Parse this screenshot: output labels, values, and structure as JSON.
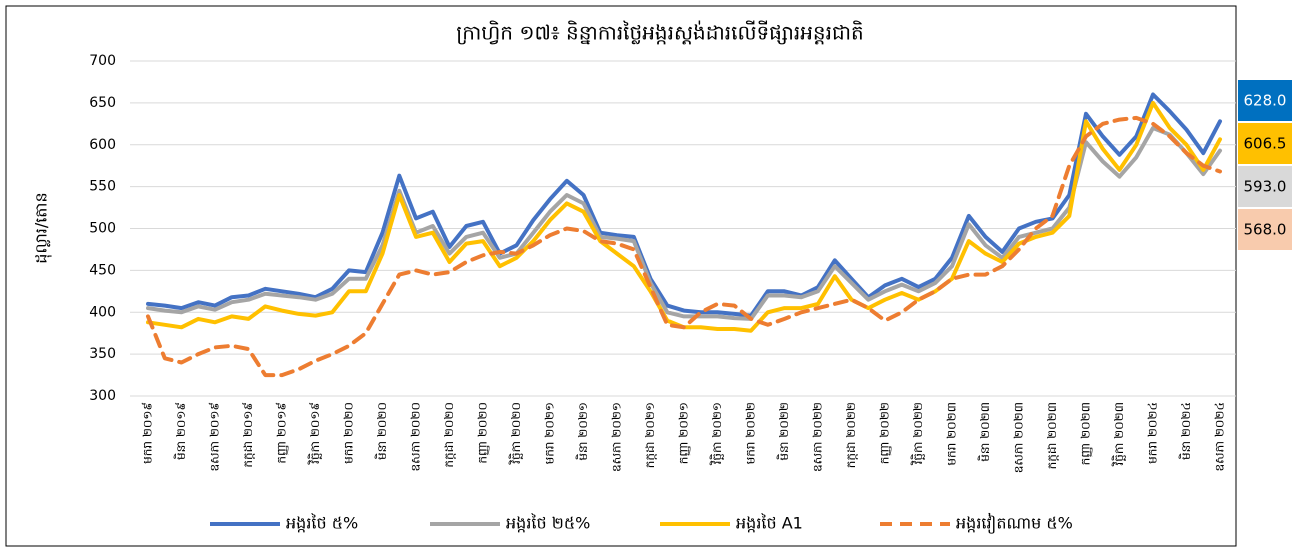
{
  "chart_data": {
    "type": "line",
    "title": "ក្រាហ្វិក ១៧៖ និន្នាការថ្លៃអង្ករស្តង់ដារលើទីផ្សារអន្តរជាតិ",
    "y_label": "ដុល្លារ/តោន",
    "categories": [
      "មករា ២០១៩",
      null,
      "មិនា ២០១៩",
      null,
      "ឧសភា ២០១៩",
      null,
      "កក្កដា ២០១៩",
      null,
      "កញ្ញា ២០១៩",
      null,
      "វិច្ឆិកា ២០១៩",
      null,
      "មករា ២០២០",
      null,
      "មិនា ២០២០",
      null,
      "ឧសភា ២០២០",
      null,
      "កក្កដា ២០២០",
      null,
      "កញ្ញា ២០២០",
      null,
      "វិច្ឆិកា ២០២០",
      null,
      "មករា ២០២១",
      null,
      "មិនា ២០២១",
      null,
      "ឧសភា ២០២១",
      null,
      "កក្កដា ២០២១",
      null,
      "កញ្ញា ២០២១",
      null,
      "វិច្ឆិកា ២០២១",
      null,
      "មករា ២០២២",
      null,
      "មិនា ២០២២",
      null,
      "ឧសភា ២០២២",
      null,
      "កក្កដា ២០២២",
      null,
      "កញ្ញា ២០២២",
      null,
      "វិច្ឆិកា ២០២២",
      null,
      "មករា ២០២៣",
      null,
      "មិនា ២០២៣",
      null,
      "ឧសភា ២០២៣",
      null,
      "កក្កដា ២០២៣",
      null,
      "កញ្ញា ២០២៣",
      null,
      "វិច្ឆិកា ២០២៣",
      null,
      "មករា ២០២៤",
      null,
      "មិនា ២០២៤",
      null,
      "ឧសភា ២០២៤"
    ],
    "series": [
      {
        "name": "អង្ករថៃ ៥%",
        "color": "#4472c4",
        "dash": false,
        "label_fill": "#0070c0",
        "label_text": "#ffffff",
        "values": [
          410,
          408,
          405,
          412,
          408,
          418,
          420,
          428,
          425,
          422,
          418,
          428,
          450,
          448,
          495,
          563,
          512,
          520,
          478,
          503,
          508,
          470,
          480,
          510,
          535,
          557,
          540,
          495,
          492,
          490,
          440,
          408,
          402,
          400,
          400,
          398,
          396,
          425,
          425,
          420,
          430,
          462,
          440,
          418,
          432,
          440,
          430,
          440,
          465,
          515,
          490,
          472,
          500,
          508,
          512,
          540,
          637,
          610,
          588,
          610,
          660,
          640,
          618,
          590,
          628
        ],
        "value_labels": [
          null,
          null,
          null,
          null,
          null,
          null,
          null,
          null,
          null,
          null,
          null,
          null,
          null,
          null,
          null,
          null,
          null,
          null,
          null,
          null,
          null,
          null,
          null,
          null,
          null,
          null,
          null,
          null,
          null,
          null,
          null,
          null,
          null,
          null,
          null,
          null,
          null,
          null,
          null,
          null,
          null,
          null,
          null,
          null,
          null,
          null,
          null,
          null,
          null,
          null,
          null,
          null,
          null,
          null,
          null,
          null,
          null,
          null,
          null,
          null,
          null,
          null,
          null,
          null,
          "628.0"
        ]
      },
      {
        "name": "អង្ករថៃ ២៥%",
        "color": "#a5a5a5",
        "dash": false,
        "label_fill": "#d9d9d9",
        "label_text": "#000000",
        "values": [
          405,
          402,
          400,
          407,
          403,
          412,
          415,
          422,
          420,
          418,
          415,
          422,
          440,
          440,
          480,
          545,
          495,
          503,
          470,
          490,
          495,
          465,
          470,
          495,
          520,
          540,
          530,
          490,
          488,
          485,
          435,
          400,
          395,
          395,
          395,
          393,
          392,
          420,
          420,
          418,
          425,
          455,
          435,
          415,
          425,
          433,
          425,
          435,
          455,
          505,
          480,
          465,
          490,
          495,
          500,
          525,
          603,
          580,
          562,
          585,
          620,
          612,
          590,
          565,
          593
        ],
        "value_labels": [
          null,
          null,
          null,
          null,
          null,
          null,
          null,
          null,
          null,
          null,
          null,
          null,
          null,
          null,
          null,
          null,
          null,
          null,
          null,
          null,
          null,
          null,
          null,
          null,
          null,
          null,
          null,
          null,
          null,
          null,
          null,
          null,
          null,
          null,
          null,
          null,
          null,
          null,
          null,
          null,
          null,
          null,
          null,
          null,
          null,
          null,
          null,
          null,
          null,
          null,
          null,
          null,
          null,
          null,
          null,
          null,
          null,
          null,
          null,
          null,
          null,
          null,
          null,
          null,
          "593.0"
        ]
      },
      {
        "name": "អង្ករថៃ A1",
        "color": "#ffc000",
        "dash": false,
        "label_fill": "#ffc000",
        "label_text": "#000000",
        "values": [
          388,
          385,
          382,
          392,
          388,
          395,
          392,
          407,
          402,
          398,
          396,
          400,
          425,
          425,
          470,
          540,
          490,
          495,
          460,
          482,
          485,
          455,
          465,
          485,
          510,
          530,
          520,
          485,
          470,
          455,
          425,
          390,
          382,
          382,
          380,
          380,
          378,
          400,
          405,
          405,
          410,
          443,
          415,
          405,
          415,
          423,
          415,
          425,
          440,
          485,
          470,
          460,
          482,
          490,
          495,
          515,
          628,
          595,
          570,
          600,
          650,
          620,
          600,
          570,
          606.5
        ],
        "value_labels": [
          null,
          null,
          null,
          null,
          null,
          null,
          null,
          null,
          null,
          null,
          null,
          null,
          null,
          null,
          null,
          null,
          null,
          null,
          null,
          null,
          null,
          null,
          null,
          null,
          null,
          null,
          null,
          null,
          null,
          null,
          null,
          null,
          null,
          null,
          null,
          null,
          null,
          null,
          null,
          null,
          null,
          null,
          null,
          null,
          null,
          null,
          null,
          null,
          null,
          null,
          null,
          null,
          null,
          null,
          null,
          null,
          null,
          null,
          null,
          null,
          null,
          null,
          null,
          null,
          "606.5"
        ]
      },
      {
        "name": "អង្ករវៀតណាម ៥%",
        "color": "#ed7d31",
        "dash": true,
        "label_fill": "#f8cbad",
        "label_text": "#000000",
        "values": [
          395,
          345,
          340,
          350,
          358,
          360,
          356,
          325,
          325,
          332,
          342,
          350,
          360,
          375,
          410,
          445,
          450,
          445,
          448,
          460,
          468,
          472,
          470,
          480,
          492,
          500,
          497,
          485,
          482,
          475,
          430,
          385,
          382,
          400,
          410,
          408,
          392,
          385,
          392,
          400,
          405,
          410,
          415,
          405,
          390,
          400,
          415,
          425,
          440,
          445,
          445,
          455,
          475,
          500,
          515,
          575,
          610,
          625,
          630,
          632,
          625,
          610,
          590,
          575,
          568
        ],
        "value_labels": [
          null,
          null,
          null,
          null,
          null,
          null,
          null,
          null,
          null,
          null,
          null,
          null,
          null,
          null,
          null,
          null,
          null,
          null,
          null,
          null,
          null,
          null,
          null,
          null,
          null,
          null,
          null,
          null,
          null,
          null,
          null,
          null,
          null,
          null,
          null,
          null,
          null,
          null,
          null,
          null,
          null,
          null,
          null,
          null,
          null,
          null,
          null,
          null,
          null,
          null,
          null,
          null,
          null,
          null,
          null,
          null,
          null,
          null,
          null,
          null,
          null,
          null,
          null,
          null,
          "568.0"
        ]
      }
    ],
    "ylim": [
      300,
      700
    ],
    "yticks": [
      300,
      350,
      400,
      450,
      500,
      550,
      600,
      650,
      700
    ],
    "grid": true,
    "legend": "bottom"
  }
}
